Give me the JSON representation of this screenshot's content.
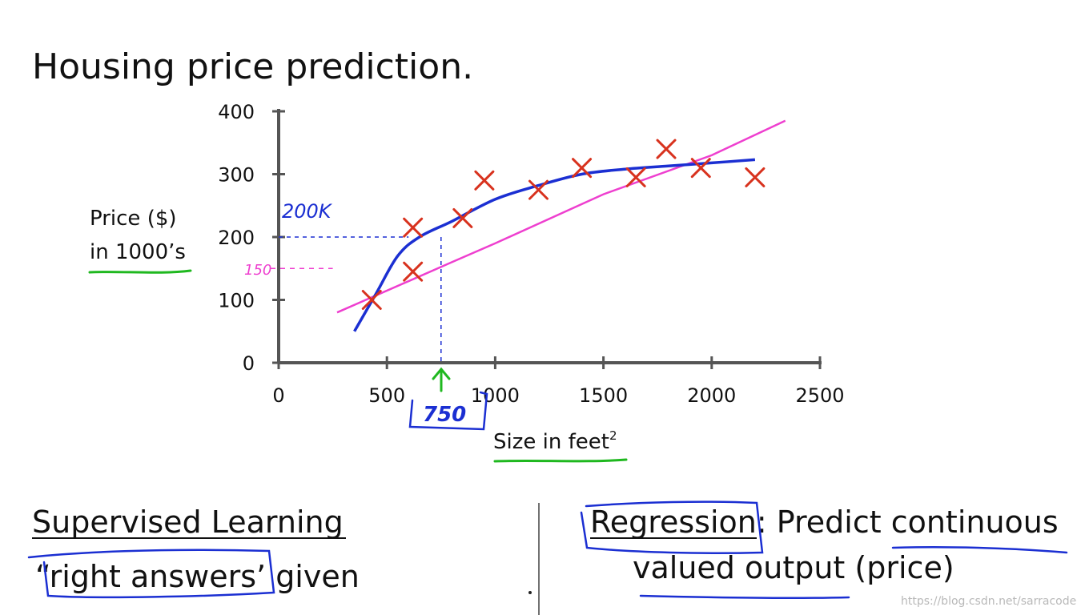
{
  "slide": {
    "title": "Housing price prediction.",
    "left_heading": "Supervised Learning",
    "left_line2_quoted": "“right answers’",
    "left_line2_rest": " given",
    "right_term": "Regression",
    "right_rest": ": Predict continuous",
    "right_line2_a": "valued output",
    "right_line2_b": " (price)",
    "watermark": "https://blog.csdn.net/sarracode"
  },
  "annotations": {
    "blue_label": "200K",
    "pink_label": "150",
    "green_label": "750"
  },
  "colors": {
    "axis": "#555555",
    "points": "#d8321e",
    "curve_fit": "#1b2fd2",
    "straight_fit": "#ee3fcf",
    "green": "#1fb81f"
  },
  "chart_data": {
    "type": "scatter",
    "title": "",
    "xlabel": "Size in feet",
    "xlabel_sup": "2",
    "ylabel_line1": "Price ($)",
    "ylabel_line2": "in 1000’s",
    "xlim": [
      0,
      2500
    ],
    "ylim": [
      0,
      400
    ],
    "x_ticks": [
      0,
      500,
      1000,
      1500,
      2000,
      2500
    ],
    "y_ticks": [
      0,
      100,
      200,
      300,
      400
    ],
    "grid": false,
    "points": [
      {
        "x": 430,
        "y": 100
      },
      {
        "x": 620,
        "y": 215
      },
      {
        "x": 620,
        "y": 145
      },
      {
        "x": 850,
        "y": 230
      },
      {
        "x": 950,
        "y": 290
      },
      {
        "x": 1200,
        "y": 275
      },
      {
        "x": 1400,
        "y": 310
      },
      {
        "x": 1650,
        "y": 295
      },
      {
        "x": 1790,
        "y": 340
      },
      {
        "x": 1950,
        "y": 310
      },
      {
        "x": 2200,
        "y": 295
      }
    ],
    "series": [
      {
        "kind": "straight fit",
        "points": [
          [
            270,
            80
          ],
          [
            800,
            160
          ],
          [
            1000,
            190
          ],
          [
            1500,
            268
          ],
          [
            2000,
            330
          ],
          [
            2340,
            385
          ]
        ]
      },
      {
        "kind": "curve fit",
        "points": [
          [
            350,
            50
          ],
          [
            450,
            110
          ],
          [
            550,
            170
          ],
          [
            650,
            200
          ],
          [
            800,
            225
          ],
          [
            1000,
            260
          ],
          [
            1200,
            282
          ],
          [
            1400,
            300
          ],
          [
            1600,
            308
          ],
          [
            1800,
            313
          ],
          [
            2000,
            318
          ],
          [
            2200,
            323
          ]
        ]
      }
    ],
    "guide_x": 750,
    "guide_y_curve": 200,
    "guide_y_line": 150
  }
}
